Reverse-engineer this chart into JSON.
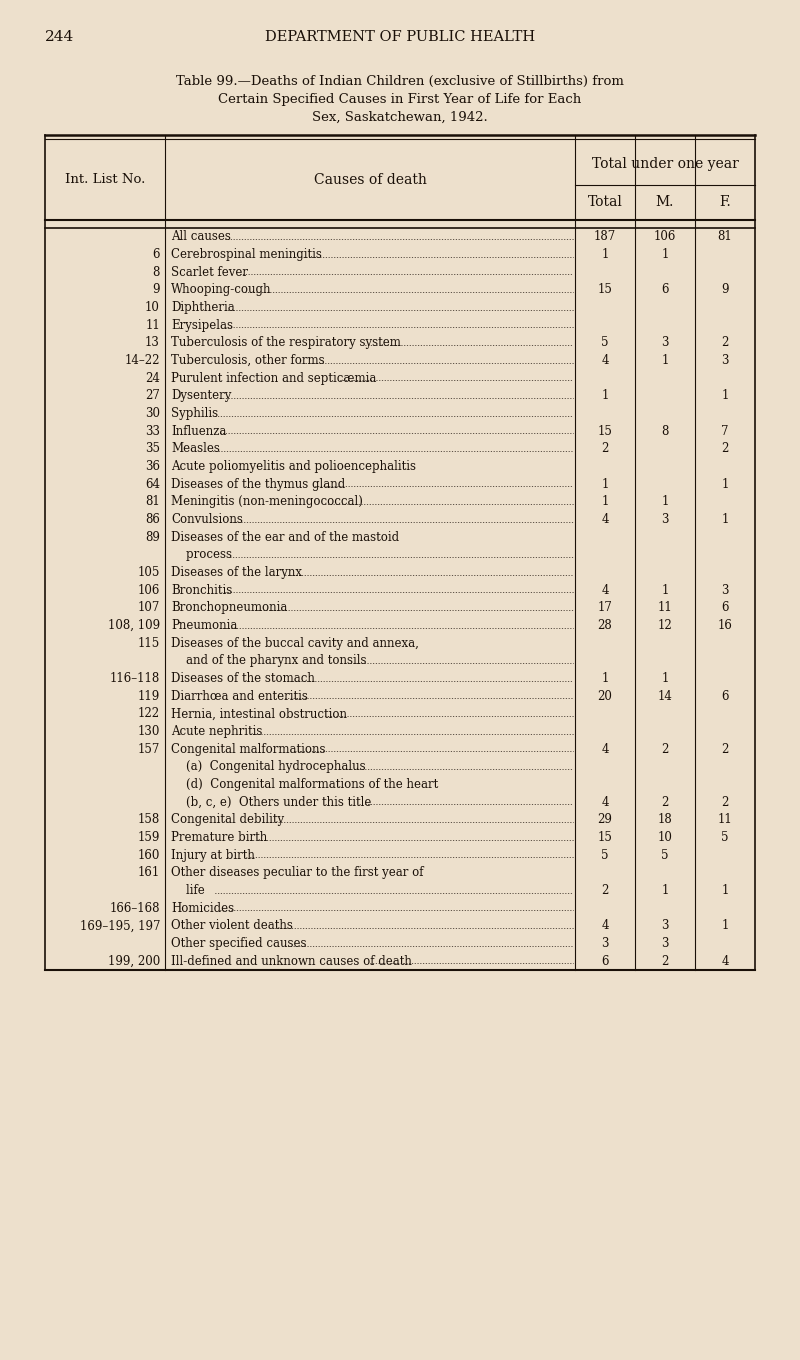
{
  "page_number": "244",
  "header": "Department of Public Health",
  "title_line1": "Table 99.—Deaths of Indian Children (exclusive of Stillbirths) from",
  "title_line2": "Certain Specified Causes in First Year of Life for Each",
  "title_line3": "Sex, Saskatchewan, 1942.",
  "col_header_span": "Total under one year",
  "col1_header": "Int. List No.",
  "col2_header": "Causes of death",
  "col3_header": "Total",
  "col4_header": "M.",
  "col5_header": "F.",
  "rows": [
    {
      "no": "",
      "cause": "All causes",
      "total": "187",
      "m": "106",
      "f": "81",
      "leader": true
    },
    {
      "no": "6",
      "cause": "Cerebrospinal meningitis",
      "total": "1",
      "m": "1",
      "f": "",
      "leader": true
    },
    {
      "no": "8",
      "cause": "Scarlet fever",
      "total": "",
      "m": "",
      "f": "",
      "leader": true
    },
    {
      "no": "9",
      "cause": "Whooping-cough",
      "total": "15",
      "m": "6",
      "f": "9",
      "leader": true
    },
    {
      "no": "10",
      "cause": "Diphtheria",
      "total": "",
      "m": "",
      "f": "",
      "leader": true
    },
    {
      "no": "11",
      "cause": "Erysipelas",
      "total": "",
      "m": "",
      "f": "",
      "leader": true
    },
    {
      "no": "13",
      "cause": "Tuberculosis of the respiratory system",
      "total": "5",
      "m": "3",
      "f": "2",
      "leader": true
    },
    {
      "no": "14–22",
      "cause": "Tuberculosis, other forms",
      "total": "4",
      "m": "1",
      "f": "3",
      "leader": true
    },
    {
      "no": "24",
      "cause": "Purulent infection and septicæmia",
      "total": "",
      "m": "",
      "f": "",
      "leader": true
    },
    {
      "no": "27",
      "cause": "Dysentery",
      "total": "1",
      "m": "",
      "f": "1",
      "leader": true
    },
    {
      "no": "30",
      "cause": "Syphilis",
      "total": "",
      "m": "",
      "f": "",
      "leader": true
    },
    {
      "no": "33",
      "cause": "Influenza",
      "total": "15",
      "m": "8",
      "f": "7",
      "leader": true
    },
    {
      "no": "35",
      "cause": "Measles",
      "total": "2",
      "m": "",
      "f": "2",
      "leader": true
    },
    {
      "no": "36",
      "cause": "Acute poliomyelitis and polioencephalitis",
      "total": "",
      "m": "",
      "f": "",
      "leader": false
    },
    {
      "no": "64",
      "cause": "Diseases of the thymus gland",
      "total": "1",
      "m": "",
      "f": "1",
      "leader": true
    },
    {
      "no": "81",
      "cause": "Meningitis (non-meningococcal)",
      "total": "1",
      "m": "1",
      "f": "",
      "leader": true
    },
    {
      "no": "86",
      "cause": "Convulsions",
      "total": "4",
      "m": "3",
      "f": "1",
      "leader": true
    },
    {
      "no": "89",
      "cause": "Diseases of the ear and of the mastoid",
      "total": "",
      "m": "",
      "f": "",
      "leader": false
    },
    {
      "no": "",
      "cause": "    process",
      "total": "",
      "m": "",
      "f": "",
      "leader": true
    },
    {
      "no": "105",
      "cause": "Diseases of the larynx",
      "total": "",
      "m": "",
      "f": "",
      "leader": true
    },
    {
      "no": "106",
      "cause": "Bronchitis",
      "total": "4",
      "m": "1",
      "f": "3",
      "leader": true
    },
    {
      "no": "107",
      "cause": "Bronchopneumonia",
      "total": "17",
      "m": "11",
      "f": "6",
      "leader": true
    },
    {
      "no": "108, 109",
      "cause": "Pneumonia",
      "total": "28",
      "m": "12",
      "f": "16",
      "leader": true
    },
    {
      "no": "115",
      "cause": "Diseases of the buccal cavity and annexa,",
      "total": "",
      "m": "",
      "f": "",
      "leader": false
    },
    {
      "no": "",
      "cause": "    and of the pharynx and tonsils",
      "total": "",
      "m": "",
      "f": "",
      "leader": true
    },
    {
      "no": "116–118",
      "cause": "Diseases of the stomach",
      "total": "1",
      "m": "1",
      "f": "",
      "leader": true
    },
    {
      "no": "119",
      "cause": "Diarrhœa and enteritis",
      "total": "20",
      "m": "14",
      "f": "6",
      "leader": true
    },
    {
      "no": "122",
      "cause": "Hernia, intestinal obstruction",
      "total": "",
      "m": "",
      "f": "",
      "leader": true
    },
    {
      "no": "130",
      "cause": "Acute nephritis",
      "total": "",
      "m": "",
      "f": "",
      "leader": true
    },
    {
      "no": "157",
      "cause": "Congenital malformations",
      "total": "4",
      "m": "2",
      "f": "2",
      "leader": true
    },
    {
      "no": "",
      "cause": "    (a)  Congenital hydrocephalus",
      "total": "",
      "m": "",
      "f": "",
      "leader": true
    },
    {
      "no": "",
      "cause": "    (d)  Congenital malformations of the heart",
      "total": "",
      "m": "",
      "f": "",
      "leader": false
    },
    {
      "no": "",
      "cause": "    (b, c, e)  Others under this title",
      "total": "4",
      "m": "2",
      "f": "2",
      "leader": true
    },
    {
      "no": "158",
      "cause": "Congenital debility",
      "total": "29",
      "m": "18",
      "f": "11",
      "leader": true
    },
    {
      "no": "159",
      "cause": "Premature birth",
      "total": "15",
      "m": "10",
      "f": "5",
      "leader": true
    },
    {
      "no": "160",
      "cause": "Injury at birth",
      "total": "5",
      "m": "5",
      "f": "",
      "leader": true
    },
    {
      "no": "161",
      "cause": "Other diseases peculiar to the first year of",
      "total": "",
      "m": "",
      "f": "",
      "leader": false
    },
    {
      "no": "",
      "cause": "    life",
      "total": "2",
      "m": "1",
      "f": "1",
      "leader": true
    },
    {
      "no": "166–168",
      "cause": "Homicides",
      "total": "",
      "m": "",
      "f": "",
      "leader": true
    },
    {
      "no": "169–195, 197",
      "cause": "Other violent deaths",
      "total": "4",
      "m": "3",
      "f": "1",
      "leader": true
    },
    {
      "no": "",
      "cause": "Other specified causes",
      "total": "3",
      "m": "3",
      "f": "",
      "leader": true
    },
    {
      "no": "199, 200",
      "cause": "Ill-defined and unknown causes of death",
      "total": "6",
      "m": "2",
      "f": "4",
      "leader": true
    }
  ],
  "bg_color": "#ede0cc",
  "text_color": "#1a1008",
  "line_color": "#1a1008"
}
